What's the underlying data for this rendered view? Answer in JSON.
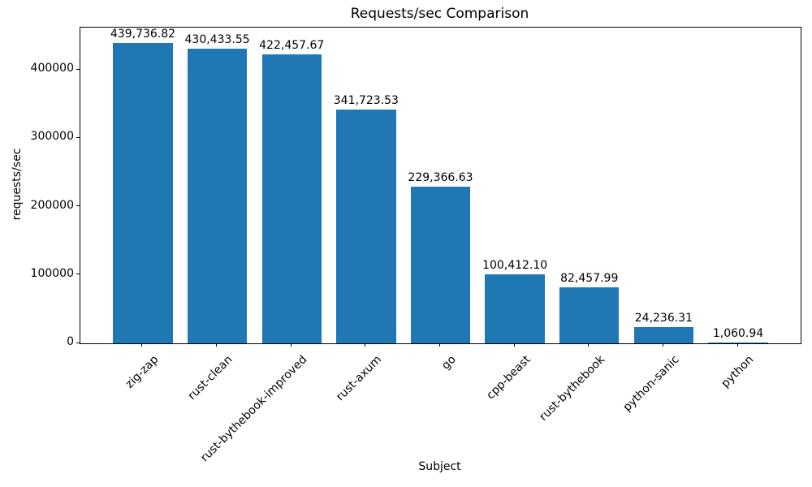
{
  "chart_data": {
    "type": "bar",
    "title": "Requests/sec Comparison",
    "xlabel": "Subject",
    "ylabel": "requests/sec",
    "categories": [
      "zig-zap",
      "rust-clean",
      "rust-bythebook-improved",
      "rust-axum",
      "go",
      "cpp-beast",
      "rust-bythebook",
      "python-sanic",
      "python"
    ],
    "values": [
      439736.82,
      430433.55,
      422457.67,
      341723.53,
      229366.63,
      100412.1,
      82457.99,
      24236.31,
      1060.94
    ],
    "value_labels": [
      "439,736.82",
      "430,433.55",
      "422,457.67",
      "341,723.53",
      "229,366.63",
      "100,412.10",
      "82,457.99",
      "24,236.31",
      "1,060.94"
    ],
    "yticks": [
      0,
      100000,
      200000,
      300000,
      400000
    ],
    "ytick_labels": [
      "0",
      "100000",
      "200000",
      "300000",
      "400000"
    ],
    "ylim": [
      0,
      461723.66
    ],
    "bar_color": "#1f77b4",
    "grid": false,
    "legend_position": "none",
    "x_tick_rotation_deg": 45
  }
}
